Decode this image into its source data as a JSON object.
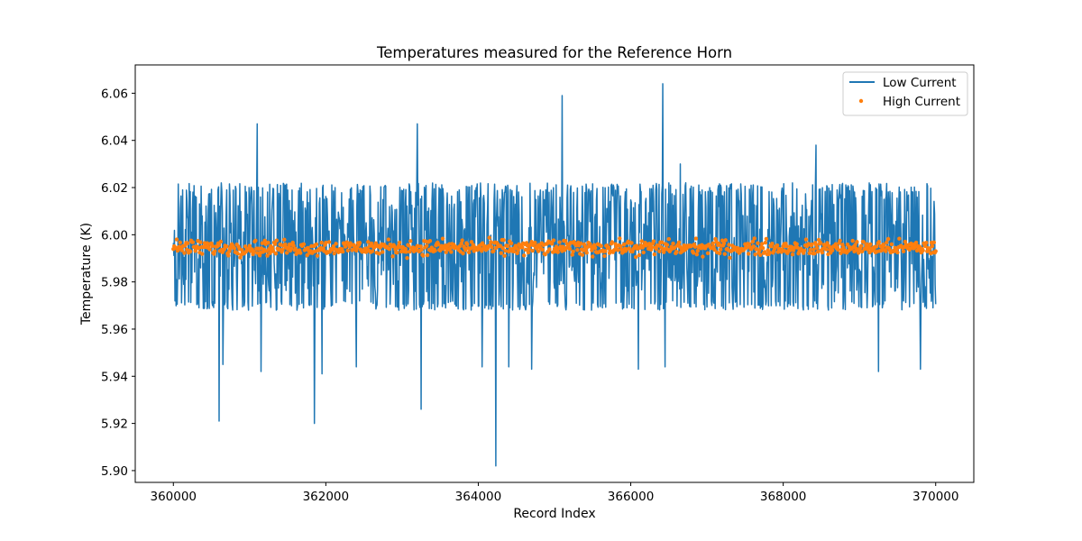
{
  "chart_data": {
    "type": "line",
    "title": "Temperatures measured for the Reference Horn",
    "xlabel": "Record Index",
    "ylabel": "Temperature (K)",
    "xlim": [
      359500,
      370500
    ],
    "ylim": [
      5.895,
      6.072
    ],
    "x_ticks": [
      360000,
      362000,
      364000,
      366000,
      368000,
      370000
    ],
    "y_ticks": [
      5.9,
      5.92,
      5.94,
      5.96,
      5.98,
      6.0,
      6.02,
      6.04,
      6.06
    ],
    "x_tick_labels": [
      "360000",
      "362000",
      "364000",
      "366000",
      "368000",
      "370000"
    ],
    "y_tick_labels": [
      "5.90",
      "5.92",
      "5.94",
      "5.96",
      "5.98",
      "6.00",
      "6.02",
      "6.04",
      "6.06"
    ],
    "legend_position": "top-right",
    "series": [
      {
        "name": "Low Current",
        "kind": "line",
        "color": "#1f77b4",
        "x_range": [
          360000,
          370000
        ],
        "mean": 5.995,
        "band": [
          5.968,
          6.022
        ],
        "inner_band": [
          5.975,
          6.018
        ],
        "spikes": [
          {
            "x": 361100,
            "y": 6.047
          },
          {
            "x": 363200,
            "y": 6.047
          },
          {
            "x": 365100,
            "y": 6.059
          },
          {
            "x": 366420,
            "y": 6.064
          },
          {
            "x": 366650,
            "y": 6.03
          },
          {
            "x": 368430,
            "y": 6.038
          },
          {
            "x": 360600,
            "y": 5.921
          },
          {
            "x": 361850,
            "y": 5.92
          },
          {
            "x": 363250,
            "y": 5.926
          },
          {
            "x": 364230,
            "y": 5.902
          },
          {
            "x": 360650,
            "y": 5.945
          },
          {
            "x": 361150,
            "y": 5.942
          },
          {
            "x": 361950,
            "y": 5.941
          },
          {
            "x": 362400,
            "y": 5.944
          },
          {
            "x": 364050,
            "y": 5.944
          },
          {
            "x": 364400,
            "y": 5.944
          },
          {
            "x": 364700,
            "y": 5.943
          },
          {
            "x": 366100,
            "y": 5.943
          },
          {
            "x": 366450,
            "y": 5.944
          },
          {
            "x": 369250,
            "y": 5.942
          },
          {
            "x": 369800,
            "y": 5.943
          }
        ]
      },
      {
        "name": "High Current",
        "kind": "scatter",
        "color": "#ff7f0e",
        "x_range": [
          360000,
          370000
        ],
        "mean": 5.9945,
        "band": [
          5.9905,
          5.9975
        ]
      }
    ]
  }
}
